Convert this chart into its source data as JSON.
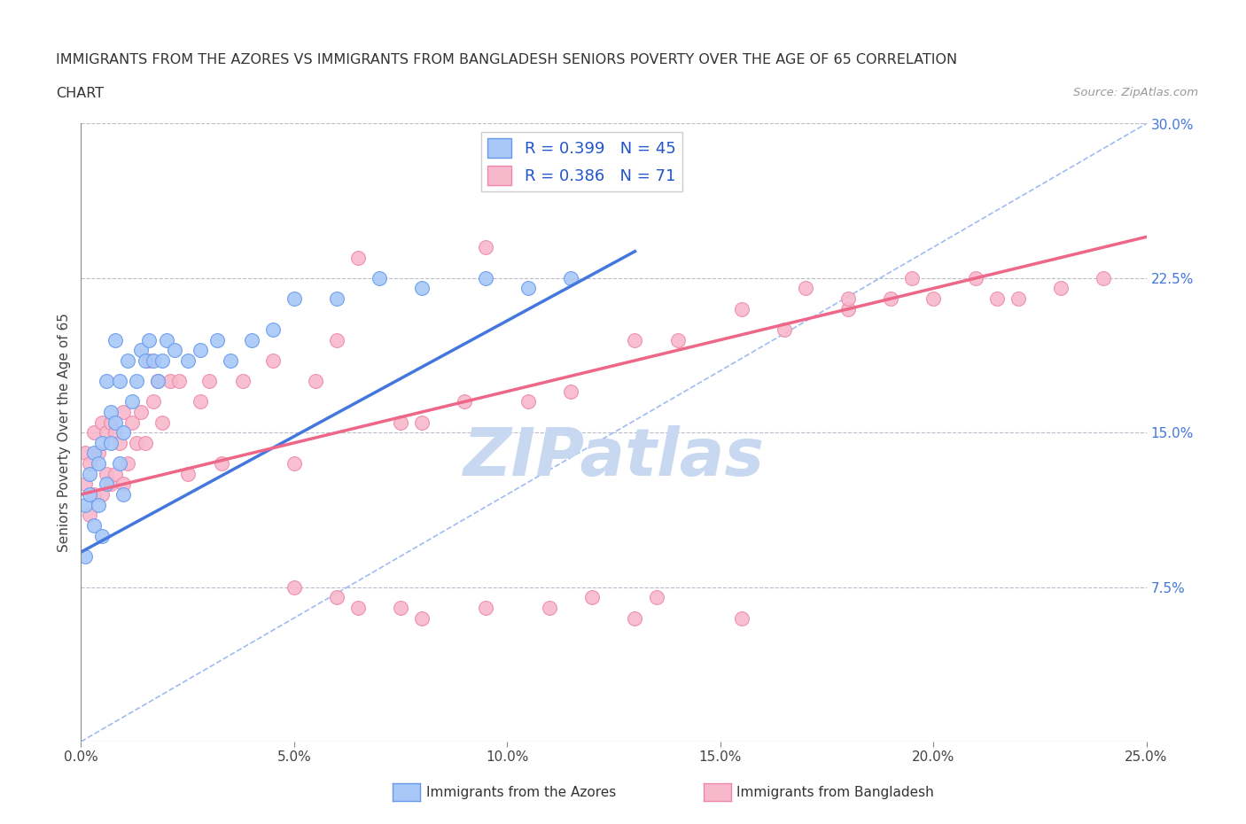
{
  "title_line1": "IMMIGRANTS FROM THE AZORES VS IMMIGRANTS FROM BANGLADESH SENIORS POVERTY OVER THE AGE OF 65 CORRELATION",
  "title_line2": "CHART",
  "source_text": "Source: ZipAtlas.com",
  "ylabel": "Seniors Poverty Over the Age of 65",
  "legend_label1": "R = 0.399   N = 45",
  "legend_label2": "R = 0.386   N = 71",
  "bottom_label1": "Immigrants from the Azores",
  "bottom_label2": "Immigrants from Bangladesh",
  "color_azores": "#a8c8f8",
  "color_bangladesh": "#f8b8cc",
  "edge_color_azores": "#6699ee",
  "edge_color_bangladesh": "#ee88aa",
  "line_color_azores": "#4477dd",
  "line_color_bangladesh": "#ee6688",
  "dashed_line_color": "#88aaee",
  "watermark_color": "#c8d8f0",
  "xlim": [
    0.0,
    0.25
  ],
  "ylim": [
    0.0,
    0.3
  ],
  "xticks": [
    0.0,
    0.05,
    0.1,
    0.15,
    0.2,
    0.25
  ],
  "yticks_right": [
    0.075,
    0.15,
    0.225,
    0.3
  ],
  "azores_x": [
    0.001,
    0.001,
    0.002,
    0.002,
    0.003,
    0.003,
    0.004,
    0.004,
    0.005,
    0.005,
    0.006,
    0.006,
    0.007,
    0.007,
    0.008,
    0.008,
    0.009,
    0.009,
    0.01,
    0.01,
    0.011,
    0.012,
    0.013,
    0.014,
    0.015,
    0.016,
    0.017,
    0.018,
    0.019,
    0.02,
    0.022,
    0.025,
    0.028,
    0.032,
    0.035,
    0.04,
    0.045,
    0.05,
    0.06,
    0.07,
    0.08,
    0.095,
    0.105,
    0.115,
    0.13
  ],
  "azores_y": [
    0.09,
    0.115,
    0.12,
    0.13,
    0.105,
    0.14,
    0.115,
    0.135,
    0.1,
    0.145,
    0.125,
    0.175,
    0.145,
    0.16,
    0.155,
    0.195,
    0.135,
    0.175,
    0.12,
    0.15,
    0.185,
    0.165,
    0.175,
    0.19,
    0.185,
    0.195,
    0.185,
    0.175,
    0.185,
    0.195,
    0.19,
    0.185,
    0.19,
    0.195,
    0.185,
    0.195,
    0.2,
    0.215,
    0.215,
    0.225,
    0.22,
    0.225,
    0.22,
    0.225,
    0.275
  ],
  "bangladesh_x": [
    0.001,
    0.001,
    0.002,
    0.002,
    0.003,
    0.003,
    0.004,
    0.005,
    0.005,
    0.006,
    0.006,
    0.007,
    0.007,
    0.008,
    0.008,
    0.009,
    0.01,
    0.01,
    0.011,
    0.012,
    0.013,
    0.014,
    0.015,
    0.016,
    0.017,
    0.018,
    0.019,
    0.021,
    0.023,
    0.025,
    0.028,
    0.03,
    0.033,
    0.038,
    0.045,
    0.05,
    0.055,
    0.06,
    0.065,
    0.075,
    0.08,
    0.09,
    0.095,
    0.105,
    0.115,
    0.13,
    0.14,
    0.155,
    0.165,
    0.18,
    0.19,
    0.2,
    0.215,
    0.23,
    0.24,
    0.17,
    0.18,
    0.21,
    0.22,
    0.195,
    0.155,
    0.135,
    0.13,
    0.11,
    0.12,
    0.095,
    0.08,
    0.075,
    0.065,
    0.06,
    0.05
  ],
  "bangladesh_y": [
    0.125,
    0.14,
    0.11,
    0.135,
    0.12,
    0.15,
    0.14,
    0.12,
    0.155,
    0.13,
    0.15,
    0.125,
    0.155,
    0.13,
    0.15,
    0.145,
    0.125,
    0.16,
    0.135,
    0.155,
    0.145,
    0.16,
    0.145,
    0.185,
    0.165,
    0.175,
    0.155,
    0.175,
    0.175,
    0.13,
    0.165,
    0.175,
    0.135,
    0.175,
    0.185,
    0.135,
    0.175,
    0.195,
    0.235,
    0.155,
    0.155,
    0.165,
    0.24,
    0.165,
    0.17,
    0.195,
    0.195,
    0.21,
    0.2,
    0.21,
    0.215,
    0.215,
    0.215,
    0.22,
    0.225,
    0.22,
    0.215,
    0.225,
    0.215,
    0.225,
    0.06,
    0.07,
    0.06,
    0.065,
    0.07,
    0.065,
    0.06,
    0.065,
    0.065,
    0.07,
    0.075
  ],
  "azores_line_x0": 0.0,
  "azores_line_x1": 0.13,
  "bangladesh_line_x0": 0.0,
  "bangladesh_line_x1": 0.25,
  "azores_line_y0": 0.092,
  "azores_line_y1": 0.238,
  "bangladesh_line_y0": 0.12,
  "bangladesh_line_y1": 0.245
}
